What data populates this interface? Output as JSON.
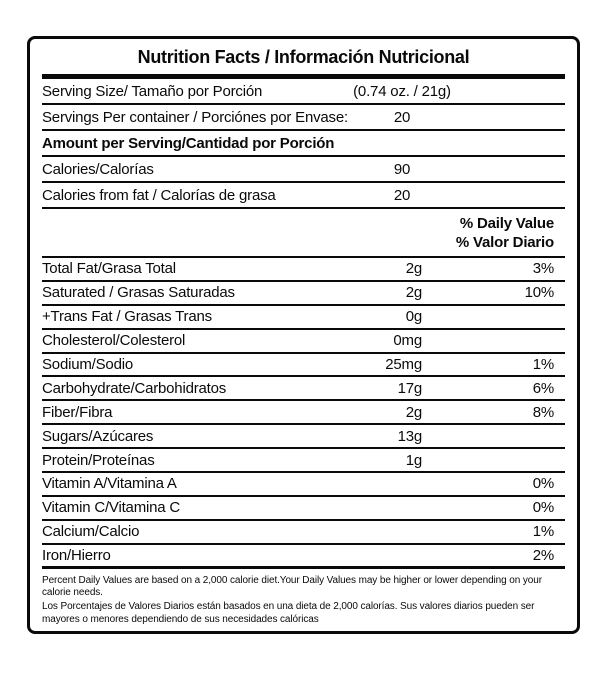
{
  "label": {
    "title": "Nutrition Facts / Información Nutricional",
    "serving": {
      "size_label": "Serving Size/ Tamaño por Porción",
      "size_value": "(0.74 oz. / 21g)",
      "per_container_label": "Servings Per container / Porciónes por Envase:",
      "per_container_value": "20",
      "amount_header": "Amount per Serving/Cantidad por Porción",
      "calories_label": "Calories/Calorías",
      "calories_value": "90",
      "calories_fat_label": "Calories from fat / Calorías de grasa",
      "calories_fat_value": "20"
    },
    "daily_value_header_en": "% Daily Value",
    "daily_value_header_es": "% Valor Diario",
    "nutrients": [
      {
        "label": "Total Fat/Grasa Total",
        "amount": "2g",
        "percent": "3%"
      },
      {
        "label": "Saturated / Grasas Saturadas",
        "amount": "2g",
        "percent": "10%"
      },
      {
        "label": "+Trans Fat / Grasas Trans",
        "amount": "0g",
        "percent": ""
      },
      {
        "label": "Cholesterol/Colesterol",
        "amount": "0mg",
        "percent": ""
      },
      {
        "label": "Sodium/Sodio",
        "amount": "25mg",
        "percent": "1%"
      },
      {
        "label": "Carbohydrate/Carbohidratos",
        "amount": "17g",
        "percent": "6%"
      },
      {
        "label": "Fiber/Fibra",
        "amount": "2g",
        "percent": "8%"
      },
      {
        "label": "Sugars/Azúcares",
        "amount": "13g",
        "percent": ""
      },
      {
        "label": "Protein/Proteínas",
        "amount": "1g",
        "percent": ""
      },
      {
        "label": "Vitamin A/Vitamina A",
        "amount": "",
        "percent": "0%"
      },
      {
        "label": "Vitamin C/Vitamina C",
        "amount": "",
        "percent": "0%"
      },
      {
        "label": "Calcium/Calcio",
        "amount": "",
        "percent": "1%"
      },
      {
        "label": "Iron/Hierro",
        "amount": "",
        "percent": "2%"
      }
    ],
    "footnote_en": "Percent Daily Values are based on a 2,000 calorie diet.Your Daily Values may be higher or lower depending on your calorie needs.",
    "footnote_es": "Los Porcentajes de Valores Diarios están basados en una dieta de 2,000 calorías. Sus valores diarios pueden ser mayores o menores dependiendo de sus necesidades calóricas",
    "colors": {
      "ink": "#0a0a0a",
      "background": "#ffffff"
    }
  }
}
